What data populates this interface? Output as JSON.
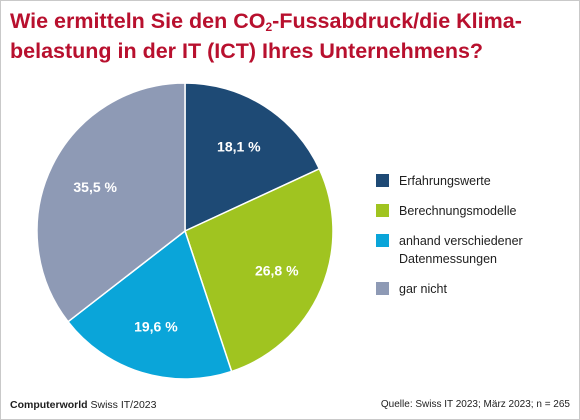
{
  "title": {
    "part1": "Wie ermitteln Sie den CO",
    "subscript": "2",
    "part2": "-Fussabdruck/die Klima-",
    "line2": "belastung in der IT (ICT) Ihres Unternehmens?"
  },
  "chart_data": {
    "type": "pie",
    "title": "Wie ermitteln Sie den CO2-Fussabdruck/die Klimabelastung in der IT (ICT) Ihres Unternehmens?",
    "slices": [
      {
        "name": "Erfahrungswerte",
        "value": 18.1,
        "label": "18,1 %",
        "color": "#1e4a75"
      },
      {
        "name": "Berechnungsmodelle",
        "value": 26.8,
        "label": "26,8 %",
        "color": "#a0c420"
      },
      {
        "name": "anhand verschiedener Datenmessungen",
        "value": 19.6,
        "label": "19,6 %",
        "color": "#0aa5d9"
      },
      {
        "name": "gar nicht",
        "value": 35.5,
        "label": "35,5 %",
        "color": "#8e9ab5"
      }
    ],
    "start": "12 o'clock",
    "direction": "clockwise",
    "legend_position": "right"
  },
  "footer": {
    "brand": "Computerworld",
    "publication": "Swiss IT/2023",
    "source": "Quelle: Swiss IT 2023; März 2023; n = 265"
  }
}
